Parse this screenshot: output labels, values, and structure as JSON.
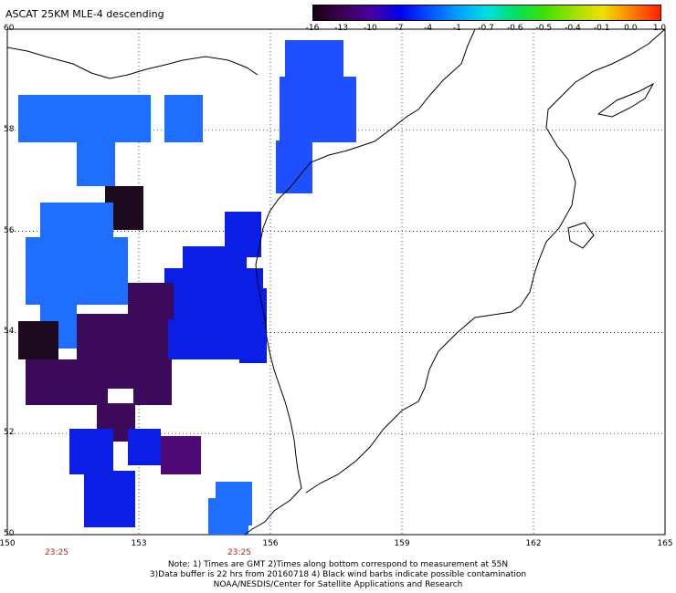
{
  "title": "ASCAT 25KM MLE-4 descending",
  "colorbar": {
    "ticks": [
      "-16",
      "-13",
      "-10",
      "-7",
      "-4",
      "-1",
      "-0.7",
      "-0.6",
      "-0.5",
      "-0.4",
      "-0.1",
      "0.0",
      "1.0"
    ],
    "colors": [
      "#1a0014",
      "#3c0050",
      "#4600a0",
      "#0000f0",
      "#0050ff",
      "#00a0ff",
      "#00e0e0",
      "#00e060",
      "#40e000",
      "#a0e000",
      "#f0e000",
      "#ff8000",
      "#ff2000"
    ]
  },
  "axes": {
    "lat_labels": [
      "60",
      "58",
      "56",
      "54",
      "52",
      "50"
    ],
    "lon_labels": [
      "150",
      "153",
      "156",
      "159",
      "162",
      "165"
    ],
    "time_labels": [
      "23:25",
      "23:25"
    ]
  },
  "legend_colors": {
    "dark": "#1e0a1e",
    "purple": "#3c0a5a",
    "violet": "#500a78",
    "blue": "#0a1ee6",
    "mid_blue": "#1e50ff",
    "light_blue": "#1e6eff",
    "time_color": "#c82000"
  },
  "notes": {
    "line1": "Note: 1) Times are GMT 2)Times along bottom correspond to measurement at 55N",
    "line2": "3)Data buffer is 22 hrs from 20160718 4) Black wind barbs indicate possible contamination",
    "line3": "NOAA/NESDIS/Center for Satellite Applications and Research"
  }
}
